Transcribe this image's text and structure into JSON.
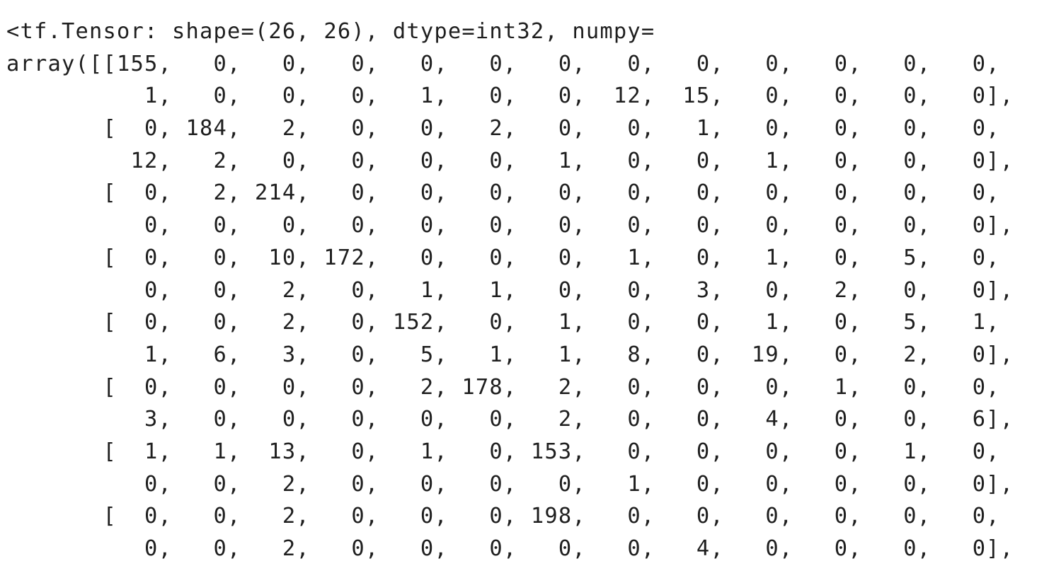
{
  "output": {
    "lines": [
      "<tf.Tensor: shape=(26, 26), dtype=int32, numpy=",
      "array([[155,   0,   0,   0,   0,   0,   0,   0,   0,   0,   0,   0,   0,",
      "          1,   0,   0,   0,   1,   0,   0,  12,  15,   0,   0,   0,   0],",
      "       [  0, 184,   2,   0,   0,   2,   0,   0,   1,   0,   0,   0,   0,",
      "         12,   2,   0,   0,   0,   0,   1,   0,   0,   1,   0,   0,   0],",
      "       [  0,   2, 214,   0,   0,   0,   0,   0,   0,   0,   0,   0,   0,",
      "          0,   0,   0,   0,   0,   0,   0,   0,   0,   0,   0,   0,   0],",
      "       [  0,   0,  10, 172,   0,   0,   0,   1,   0,   1,   0,   5,   0,",
      "          0,   0,   2,   0,   1,   1,   0,   0,   3,   0,   2,   0,   0],",
      "       [  0,   0,   2,   0, 152,   0,   1,   0,   0,   1,   0,   5,   1,",
      "          1,   6,   3,   0,   5,   1,   1,   8,   0,  19,   0,   2,   0],",
      "       [  0,   0,   0,   0,   2, 178,   2,   0,   0,   0,   1,   0,   0,",
      "          3,   0,   0,   0,   0,   0,   2,   0,   0,   4,   0,   0,   6],",
      "       [  1,   1,  13,   0,   1,   0, 153,   0,   0,   0,   0,   1,   0,",
      "          0,   0,   2,   0,   0,   0,   0,   1,   0,   0,   0,   0,   0],",
      "       [  0,   0,   2,   0,   0,   0, 198,   0,   0,   0,   0,   0,   0,",
      "          0,   0,   2,   0,   0,   0,   0,   0,   4,   0,   0,   0,   0],"
    ]
  }
}
